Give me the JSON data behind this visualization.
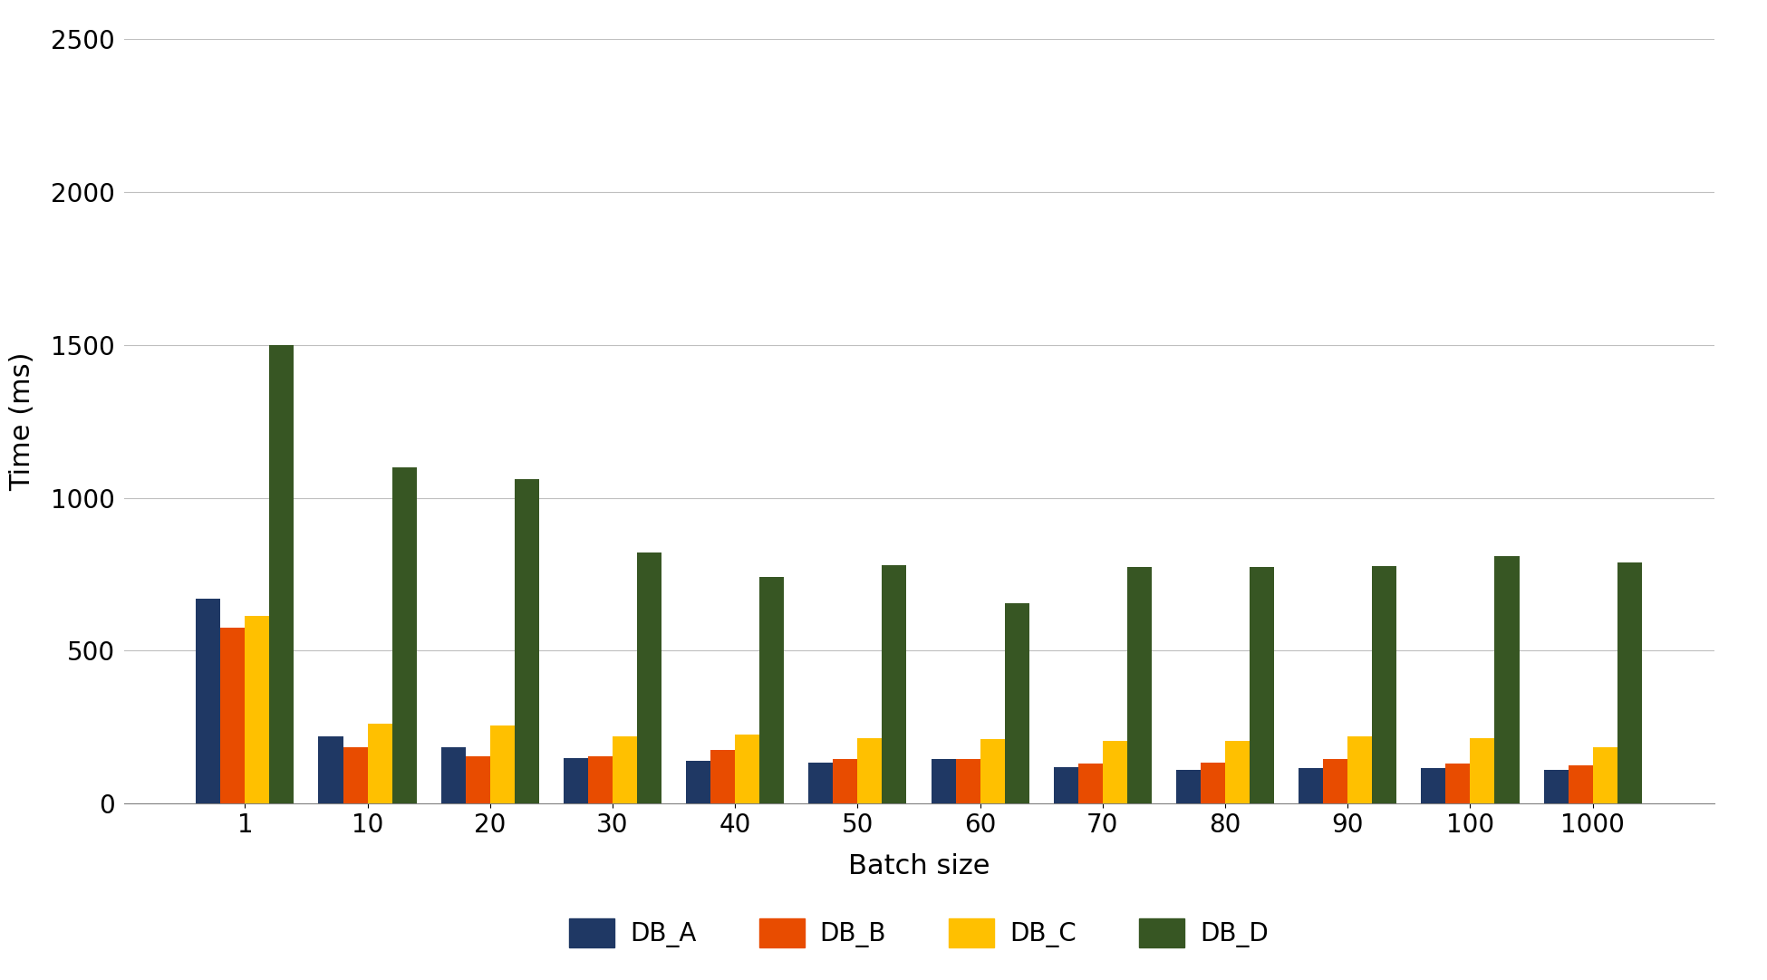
{
  "categories": [
    "1",
    "10",
    "20",
    "30",
    "40",
    "50",
    "60",
    "70",
    "80",
    "90",
    "100",
    "1000"
  ],
  "series": {
    "DB_A": [
      670,
      220,
      185,
      150,
      140,
      135,
      145,
      120,
      110,
      115,
      115,
      110
    ],
    "DB_B": [
      575,
      185,
      155,
      155,
      175,
      145,
      145,
      130,
      135,
      145,
      130,
      125
    ],
    "DB_C": [
      615,
      260,
      255,
      220,
      225,
      215,
      210,
      205,
      205,
      220,
      215,
      185
    ],
    "DB_D": [
      1500,
      1100,
      1060,
      820,
      740,
      780,
      655,
      775,
      775,
      778,
      810,
      790
    ]
  },
  "colors": {
    "DB_A": "#1F3864",
    "DB_B": "#E84C00",
    "DB_C": "#FFC000",
    "DB_D": "#375623"
  },
  "xlabel": "Batch size",
  "ylabel": "Time (ms)",
  "ylim": [
    0,
    2500
  ],
  "yticks": [
    0,
    500,
    1000,
    1500,
    2000,
    2500
  ],
  "legend_labels": [
    "DB_A",
    "DB_B",
    "DB_C",
    "DB_D"
  ],
  "background_color": "#ffffff",
  "grid_color": "#bfbfbf"
}
